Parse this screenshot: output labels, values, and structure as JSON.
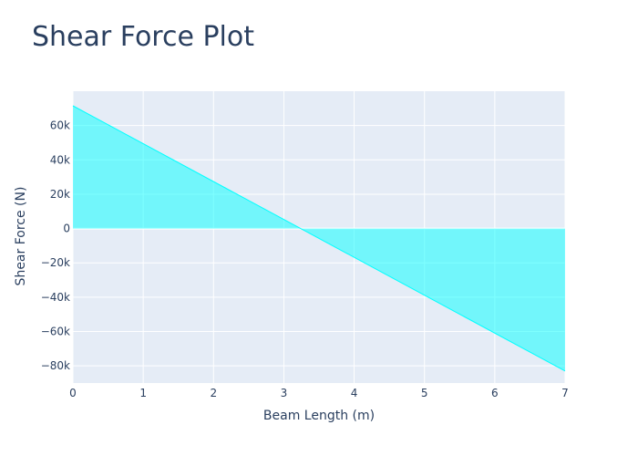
{
  "chart_data": {
    "type": "area",
    "title": "Shear Force Plot",
    "xlabel": "Beam Length (m)",
    "ylabel": "Shear Force (N)",
    "xlim": [
      0,
      7
    ],
    "ylim": [
      -90000,
      80000
    ],
    "x_ticks": [
      0,
      1,
      2,
      3,
      4,
      5,
      6,
      7
    ],
    "x_tick_labels": [
      "0",
      "1",
      "2",
      "3",
      "4",
      "5",
      "6",
      "7"
    ],
    "y_ticks": [
      60000,
      40000,
      20000,
      0,
      -20000,
      -40000,
      -60000,
      -80000
    ],
    "y_tick_labels": [
      "60k",
      "40k",
      "20k",
      "0",
      "−20k",
      "−40k",
      "−60k",
      "−80k"
    ],
    "grid": true,
    "series": [
      {
        "x": [
          0,
          7
        ],
        "y": [
          71500,
          -83000
        ],
        "fill": "tozeroy",
        "color": "#00ffff"
      }
    ],
    "colors": {
      "plot_bg": "#e5ecf6",
      "grid": "#ffffff",
      "text": "#2a3f5f",
      "fill": "#00ffff"
    }
  }
}
